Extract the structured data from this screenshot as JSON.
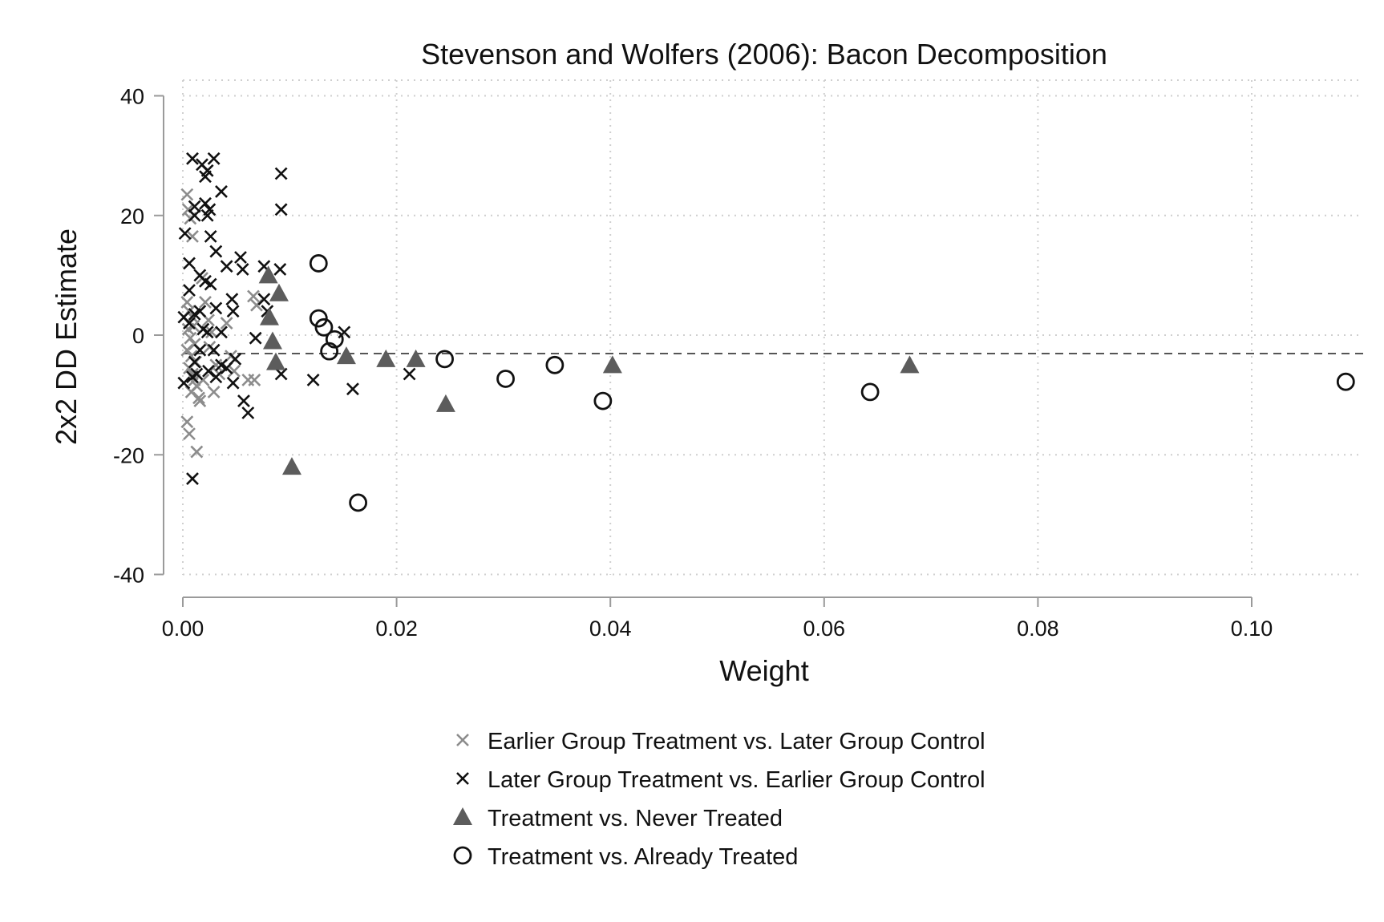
{
  "chart_data": {
    "type": "scatter",
    "title": "Stevenson and Wolfers (2006): Bacon Decomposition",
    "xlabel": "Weight",
    "ylabel": "2x2 DD Estimate",
    "xlim": [
      0,
      0.11
    ],
    "ylim": [
      -40,
      40
    ],
    "x_ticks": [
      "0.00",
      "0.02",
      "0.04",
      "0.06",
      "0.08",
      "0.10"
    ],
    "x_tick_values": [
      0,
      0.02,
      0.04,
      0.06,
      0.08,
      0.1
    ],
    "y_ticks": [
      "40",
      "20",
      "0",
      "-20",
      "-40"
    ],
    "y_tick_values": [
      40,
      20,
      0,
      -20,
      -40
    ],
    "grid": true,
    "reference_line": {
      "y": -3.08,
      "style": "dashed"
    },
    "legend_position": "bottom",
    "colors": {
      "earlier_cross": "#8c8c8c",
      "later_cross": "#111111",
      "triangle": "#5c5c5c",
      "circle": "#111111",
      "grid": "#cfcfcf",
      "axis": "#9a9a9a"
    },
    "series": [
      {
        "name": "Earlier Group Treatment vs. Later Group Control",
        "marker": "x-gray",
        "points": [
          [
            0.0004,
            23.5
          ],
          [
            0.0005,
            21
          ],
          [
            0.0007,
            19.5
          ],
          [
            0.0009,
            16.5
          ],
          [
            0.0004,
            5.5
          ],
          [
            0.0006,
            4
          ],
          [
            0.0009,
            3
          ],
          [
            0.001,
            1.5
          ],
          [
            0.0005,
            1
          ],
          [
            0.0007,
            -0.5
          ],
          [
            0.0011,
            -1.5
          ],
          [
            0.0004,
            -2.5
          ],
          [
            0.0008,
            -3.5
          ],
          [
            0.0012,
            -4.5
          ],
          [
            0.0006,
            -5.5
          ],
          [
            0.0009,
            -6.5
          ],
          [
            0.0011,
            -7.5
          ],
          [
            0.0013,
            -8.5
          ],
          [
            0.0008,
            -9.5
          ],
          [
            0.0015,
            -10.5
          ],
          [
            0.0004,
            -14.5
          ],
          [
            0.0006,
            -16.5
          ],
          [
            0.0013,
            -19.5
          ],
          [
            0.0018,
            9.5
          ],
          [
            0.0021,
            5.5
          ],
          [
            0.0024,
            2.5
          ],
          [
            0.0027,
            0.5
          ],
          [
            0.0025,
            -2
          ],
          [
            0.0031,
            -5
          ],
          [
            0.0034,
            -6.5
          ],
          [
            0.0029,
            -9.5
          ],
          [
            0.0041,
            2
          ],
          [
            0.0045,
            -3.5
          ],
          [
            0.0048,
            -6
          ],
          [
            0.0066,
            6.5
          ],
          [
            0.0069,
            5
          ],
          [
            0.0061,
            -7.5
          ],
          [
            0.0067,
            -7.5
          ],
          [
            0.0016,
            -11
          ],
          [
            0.0019,
            -7.5
          ]
        ]
      },
      {
        "name": "Later Group Treatment vs. Earlier Group Control",
        "marker": "x-black",
        "points": [
          [
            0.0009,
            29.5
          ],
          [
            0.0018,
            28.5
          ],
          [
            0.0023,
            27.5
          ],
          [
            0.0029,
            29.5
          ],
          [
            0.0021,
            26.5
          ],
          [
            0.0036,
            24
          ],
          [
            0.0092,
            27
          ],
          [
            0.0011,
            21.5
          ],
          [
            0.0021,
            22
          ],
          [
            0.0025,
            21
          ],
          [
            0.0023,
            20
          ],
          [
            0.0011,
            20
          ],
          [
            0.0092,
            21
          ],
          [
            0.0002,
            17
          ],
          [
            0.0026,
            16.5
          ],
          [
            0.0031,
            14
          ],
          [
            0.0054,
            13
          ],
          [
            0.0041,
            11.5
          ],
          [
            0.0076,
            11.5
          ],
          [
            0.0056,
            11
          ],
          [
            0.0091,
            11
          ],
          [
            0.0006,
            12
          ],
          [
            0.0016,
            10
          ],
          [
            0.0021,
            9
          ],
          [
            0.0026,
            8.5
          ],
          [
            0.0006,
            7.5
          ],
          [
            0.0046,
            6
          ],
          [
            0.0076,
            6
          ],
          [
            0.0001,
            3
          ],
          [
            0.0011,
            3.5
          ],
          [
            0.0016,
            4
          ],
          [
            0.0031,
            4.5
          ],
          [
            0.0047,
            4
          ],
          [
            0.0079,
            4
          ],
          [
            0.0006,
            2
          ],
          [
            0.0019,
            1
          ],
          [
            0.0023,
            0.5
          ],
          [
            0.0036,
            0.5
          ],
          [
            0.0068,
            -0.5
          ],
          [
            0.0151,
            0.5
          ],
          [
            0.0016,
            -2.5
          ],
          [
            0.0029,
            -2.5
          ],
          [
            0.0049,
            -4
          ],
          [
            0.0011,
            -4.5
          ],
          [
            0.0036,
            -5
          ],
          [
            0.0041,
            -5.5
          ],
          [
            0.0024,
            -6
          ],
          [
            0.0013,
            -6.5
          ],
          [
            0.0009,
            -7
          ],
          [
            0.0031,
            -7
          ],
          [
            0.0001,
            -8
          ],
          [
            0.0047,
            -8
          ],
          [
            0.0092,
            -6.5
          ],
          [
            0.0122,
            -7.5
          ],
          [
            0.0212,
            -6.5
          ],
          [
            0.0159,
            -9
          ],
          [
            0.0057,
            -11
          ],
          [
            0.0061,
            -13
          ],
          [
            0.0009,
            -24
          ]
        ]
      },
      {
        "name": "Treatment vs. Never Treated",
        "marker": "triangle",
        "points": [
          [
            0.008,
            10
          ],
          [
            0.009,
            7
          ],
          [
            0.0081,
            3
          ],
          [
            0.0084,
            -1
          ],
          [
            0.0087,
            -4.5
          ],
          [
            0.0102,
            -22
          ],
          [
            0.0153,
            -3.5
          ],
          [
            0.019,
            -4
          ],
          [
            0.0218,
            -4
          ],
          [
            0.0246,
            -11.5
          ],
          [
            0.0402,
            -5
          ],
          [
            0.068,
            -5
          ]
        ]
      },
      {
        "name": "Treatment vs. Already Treated",
        "marker": "circle",
        "points": [
          [
            0.0127,
            12
          ],
          [
            0.0127,
            2.8
          ],
          [
            0.0132,
            1.3
          ],
          [
            0.0142,
            -0.7
          ],
          [
            0.0137,
            -2.7
          ],
          [
            0.0245,
            -4
          ],
          [
            0.0164,
            -28
          ],
          [
            0.0302,
            -7.3
          ],
          [
            0.0348,
            -5
          ],
          [
            0.0393,
            -11
          ],
          [
            0.0643,
            -9.5
          ],
          [
            0.1088,
            -7.8
          ]
        ]
      }
    ]
  }
}
